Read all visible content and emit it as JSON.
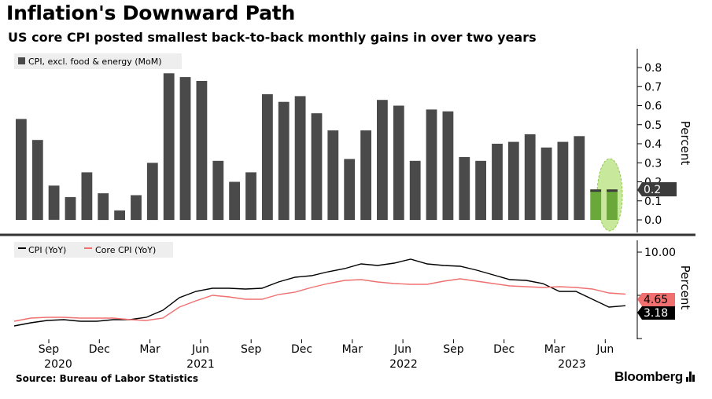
{
  "header": {
    "title": "Inflation's Downward Path",
    "subtitle": "US core CPI posted smallest back-to-back monthly gains in over two years"
  },
  "footer": {
    "source": "Source: Bureau of Labor Statistics",
    "brand": "Bloomberg"
  },
  "colors": {
    "bars": "#4a4a4a",
    "cpi_line": "#000000",
    "core_line": "#f07070",
    "highlight": "#b5e27a",
    "latest_bar": "#6aa83a"
  },
  "chart_data": [
    {
      "type": "bar",
      "legend": "CPI, excl. food & energy (MoM)",
      "ylabel": "Percent",
      "ylim": [
        -0.05,
        0.85
      ],
      "yticks": [
        "0.8",
        "0.7",
        "0.6",
        "0.5",
        "0.4",
        "0.3",
        "0.2",
        "0.1",
        "0.0"
      ],
      "latest_label": "0.2",
      "values": [
        0.53,
        0.42,
        0.18,
        0.12,
        0.25,
        0.14,
        0.05,
        0.13,
        0.3,
        0.77,
        0.75,
        0.73,
        0.31,
        0.2,
        0.25,
        0.66,
        0.62,
        0.65,
        0.56,
        0.47,
        0.32,
        0.47,
        0.63,
        0.6,
        0.31,
        0.58,
        0.57,
        0.33,
        0.31,
        0.4,
        0.41,
        0.45,
        0.38,
        0.41,
        0.44,
        0.16,
        0.16
      ]
    },
    {
      "type": "line",
      "ylabel": "Percent",
      "ytick_label": "10.00",
      "series": [
        {
          "name": "CPI (YoY)",
          "latest_label": "3.18",
          "values": [
            0.6,
            1.0,
            1.3,
            1.4,
            1.2,
            1.2,
            1.4,
            1.4,
            1.7,
            2.6,
            4.2,
            5.0,
            5.4,
            5.4,
            5.3,
            5.4,
            6.2,
            6.8,
            7.0,
            7.5,
            7.9,
            8.5,
            8.3,
            8.6,
            9.1,
            8.5,
            8.3,
            8.2,
            7.7,
            7.1,
            6.5,
            6.4,
            6.0,
            5.0,
            5.0,
            4.0,
            3.0,
            3.18
          ]
        },
        {
          "name": "Core CPI (YoY)",
          "latest_label": "4.65",
          "values": [
            1.2,
            1.6,
            1.7,
            1.7,
            1.6,
            1.6,
            1.6,
            1.4,
            1.3,
            1.6,
            3.0,
            3.8,
            4.5,
            4.3,
            4.0,
            4.0,
            4.6,
            4.9,
            5.5,
            6.0,
            6.4,
            6.5,
            6.2,
            6.0,
            5.9,
            5.9,
            6.3,
            6.6,
            6.3,
            6.0,
            5.7,
            5.6,
            5.5,
            5.6,
            5.5,
            5.3,
            4.8,
            4.65
          ]
        }
      ]
    }
  ],
  "xaxis": {
    "months": [
      "Sep",
      "Dec",
      "Mar",
      "Jun",
      "Sep",
      "Dec",
      "Mar",
      "Jun",
      "Sep",
      "Dec",
      "Mar",
      "Jun"
    ],
    "years": [
      "2020",
      "2021",
      "2022",
      "2023"
    ]
  }
}
